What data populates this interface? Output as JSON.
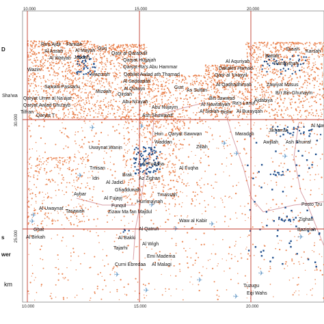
{
  "colors": {
    "grid": "#c0392b",
    "settlement": "#e8743b",
    "well": "#1f4e8c",
    "airport": "#6d9ec9",
    "road": "#d9a0a8",
    "frame": "#888888"
  },
  "ticks_top": [
    "10.000",
    "15.000",
    "20.000"
  ],
  "ticks_bottom": [
    "10.000",
    "15.000",
    "20.000"
  ],
  "ticks_left": [
    "30.000",
    "25.000"
  ],
  "legend_fragments": [
    "D",
    "s",
    "wer",
    "km"
  ],
  "places": [
    "Ra's Ajdir",
    "Farwah",
    "Al Assah",
    "Al Mayah",
    "Qurj",
    "Al Watyah",
    "Jaddah",
    "Wazin",
    "Qasr al Qarabulli",
    "Qaryat Hujjajah",
    "Qaryat Ra's Abu Hammar",
    "Susah",
    "Karsah",
    "Battah",
    "Tulmaythah",
    "Al Aquriyah",
    "Dakakin Hamad",
    "Qasr al 'Urayyil",
    "Al Qadhadhimah",
    "Zawiyat Masus",
    "Ajdabiya",
    "Bi'r Bin Ghunaym",
    "Sawani Fassanu",
    "Mazurah",
    "Mizdah",
    "Qabilat Awlad ath Thamad",
    "Al Saddadah",
    "Al Qurayn",
    "Gurt",
    "As Sultan",
    "Bin Jawwad",
    "Al Nawfaliyah",
    "Ra's Lanuf",
    "Al Sidrah",
    "Bishr",
    "Al Burayqah",
    "Sha'wa",
    "Qaryat Umm al Na'ajat",
    "Qaryat Awlad Dhu'ayb",
    "Qirdah",
    "Abu Ni'ayah",
    "Abu Nujaym",
    "Ash Shuwayrif",
    "Tilfran",
    "Qaryat T",
    "Hun",
    "Qaryat Sawwan",
    "Waddan",
    "Zillah",
    "Maradah",
    "Jikharrah",
    "Ash Shurraf",
    "Al Mawa",
    "Awjilah",
    "Uwaynat Wanin",
    "Tmisan",
    "Idri",
    "Brak",
    "Al Fuqaha",
    "Al Fuqha",
    "Al Jadid",
    "Az Zighan",
    "Ghadduwah",
    "Al Fujayj",
    "Aybar",
    "Tmassah",
    "Hummayrah",
    "Funqul",
    "Tasawah",
    "Zizaw Ma fan Majdul",
    "Al Uwaynat",
    "Ghat",
    "Al Birkah",
    "Waw al Kabir",
    "Posto Tru",
    "Zighan",
    "Bazimah",
    "Al Qatrun",
    "Al Bakki",
    "Al Wigh",
    "Tajarhi",
    "Emi Madema",
    "Curni Ebredaa",
    "Al Malaqi",
    "Tuzugu",
    "Eqi Wahs"
  ]
}
